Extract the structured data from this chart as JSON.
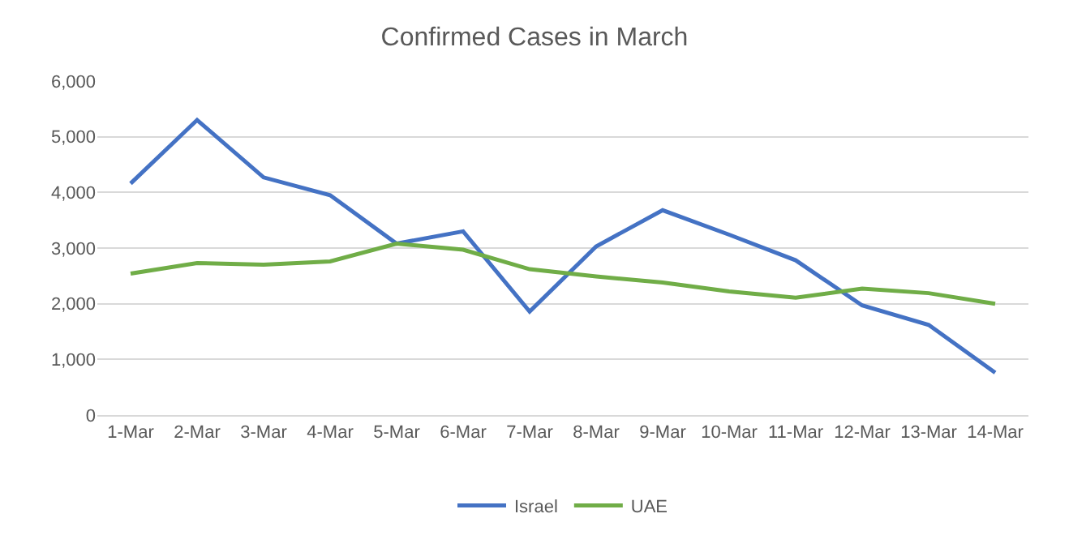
{
  "chart_data": {
    "type": "line",
    "title": "Confirmed Cases in March",
    "categories": [
      "1-Mar",
      "2-Mar",
      "3-Mar",
      "4-Mar",
      "5-Mar",
      "6-Mar",
      "7-Mar",
      "8-Mar",
      "9-Mar",
      "10-Mar",
      "11-Mar",
      "12-Mar",
      "13-Mar",
      "14-Mar"
    ],
    "series": [
      {
        "name": "Israel",
        "color": "#4472c4",
        "values": [
          4160,
          5300,
          4270,
          3950,
          3080,
          3300,
          1860,
          3030,
          3680,
          3240,
          2780,
          1970,
          1620,
          760
        ]
      },
      {
        "name": "UAE",
        "color": "#70ad47",
        "values": [
          2540,
          2730,
          2700,
          2760,
          3080,
          2970,
          2620,
          2490,
          2380,
          2220,
          2110,
          2270,
          2190,
          2000
        ]
      }
    ],
    "ylim": [
      0,
      6000
    ],
    "yticks": [
      {
        "value": 0,
        "label": "0"
      },
      {
        "value": 1000,
        "label": "1,000"
      },
      {
        "value": 2000,
        "label": "2,000"
      },
      {
        "value": 3000,
        "label": "3,000"
      },
      {
        "value": 4000,
        "label": "4,000"
      },
      {
        "value": 5000,
        "label": "5,000"
      },
      {
        "value": 6000,
        "label": "6,000"
      }
    ],
    "grid": "y",
    "legend": "bottom",
    "marker": "none",
    "line_style": "solid"
  }
}
